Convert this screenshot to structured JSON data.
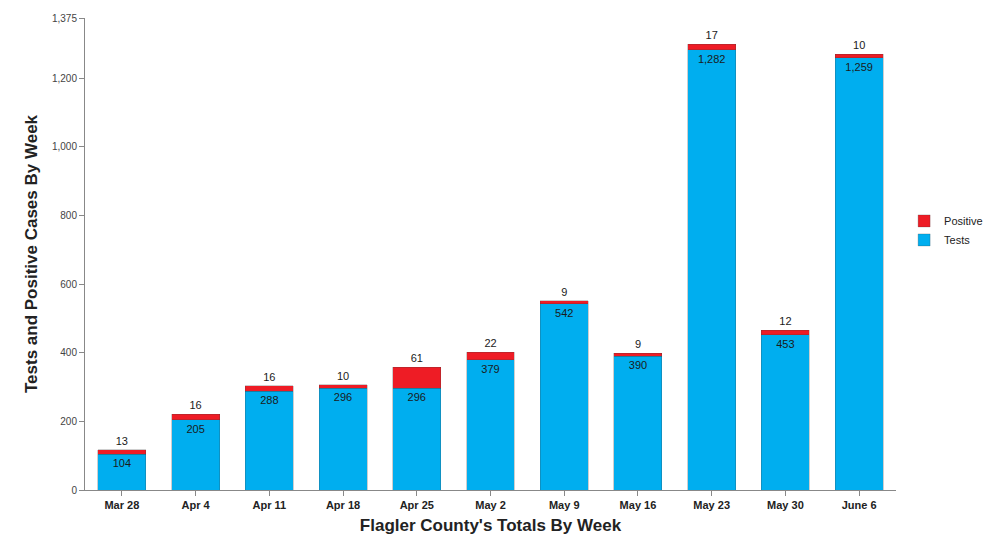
{
  "chart_data": {
    "type": "bar",
    "stacked": true,
    "data_labels": true,
    "grid": false,
    "legend": "right",
    "x_label": "Flagler County's Totals By Week",
    "y_label": "Tests and Positive Cases By Week",
    "categories": [
      "Mar 28",
      "Apr 4",
      "Apr 11",
      "Apr 18",
      "Apr 25",
      "May 2",
      "May 9",
      "May 16",
      "May 23",
      "May 30",
      "June 6"
    ],
    "ylim": [
      0,
      1375
    ],
    "yticks": [
      0,
      200,
      400,
      600,
      800,
      {
        "value": 1000,
        "label": "1,000"
      },
      {
        "value": 1200,
        "label": "1,200"
      },
      {
        "value": 1375,
        "label": "1,375"
      }
    ],
    "series": [
      {
        "name": "Tests",
        "color": "#00aeef",
        "values": [
          104,
          205,
          288,
          296,
          296,
          379,
          542,
          390,
          1282,
          453,
          1259
        ],
        "value_labels": [
          "104",
          "205",
          "288",
          "296",
          "296",
          "379",
          "542",
          "390",
          "1,282",
          "453",
          "1,259"
        ]
      },
      {
        "name": "Positive",
        "color": "#ee1c25",
        "values": [
          13,
          16,
          16,
          10,
          61,
          22,
          9,
          9,
          17,
          12,
          10
        ]
      }
    ]
  }
}
